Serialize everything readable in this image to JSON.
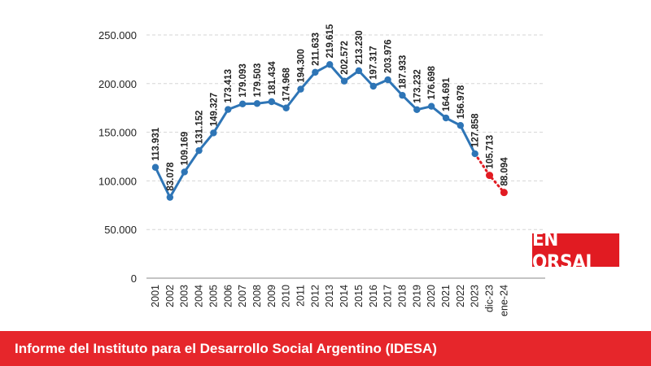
{
  "chart_data": {
    "type": "line",
    "title": "",
    "xlabel": "",
    "ylabel": "",
    "ylim": [
      0,
      250000
    ],
    "y_ticks": [
      {
        "value": 0,
        "label": "0"
      },
      {
        "value": 50000,
        "label": "50.000"
      },
      {
        "value": 100000,
        "label": "100.000"
      },
      {
        "value": 150000,
        "label": "150.000"
      },
      {
        "value": 200000,
        "label": "200.000"
      },
      {
        "value": 250000,
        "label": "250.000"
      }
    ],
    "grid": true,
    "categories": [
      "2001",
      "2002",
      "2003",
      "2004",
      "2005",
      "2006",
      "2007",
      "2008",
      "2009",
      "2010",
      "2011",
      "2012",
      "2013",
      "2014",
      "2015",
      "2016",
      "2017",
      "2018",
      "2019",
      "2020",
      "2021",
      "2022",
      "2023",
      "dic-23",
      "ene-24"
    ],
    "values": [
      113931,
      83078,
      109169,
      131152,
      149327,
      173413,
      179093,
      179503,
      181434,
      174968,
      194300,
      211633,
      219615,
      202572,
      213230,
      197317,
      203976,
      187933,
      173232,
      176698,
      164691,
      156978,
      127858,
      105713,
      88094
    ],
    "value_labels": [
      "113.931",
      "83.078",
      "109.169",
      "131.152",
      "149.327",
      "173.413",
      "179.093",
      "179.503",
      "181.434",
      "174.968",
      "194.300",
      "211.633",
      "219.615",
      "202.572",
      "213.230",
      "197.317",
      "203.976",
      "187.933",
      "173.232",
      "176.698",
      "164.691",
      "156.978",
      "127.858",
      "105.713",
      "88.094"
    ],
    "series": [
      {
        "name": "anual",
        "from_index": 0,
        "to_index": 22,
        "color": "#2e75b6",
        "style": "solid"
      },
      {
        "name": "proyeccion",
        "from_index": 22,
        "to_index": 24,
        "color": "#e11b22",
        "style": "dotted"
      }
    ]
  },
  "badge": {
    "text": "EN ORSAI"
  },
  "caption": {
    "text": "Informe del Instituto para el Desarrollo Social Argentino (IDESA)"
  }
}
